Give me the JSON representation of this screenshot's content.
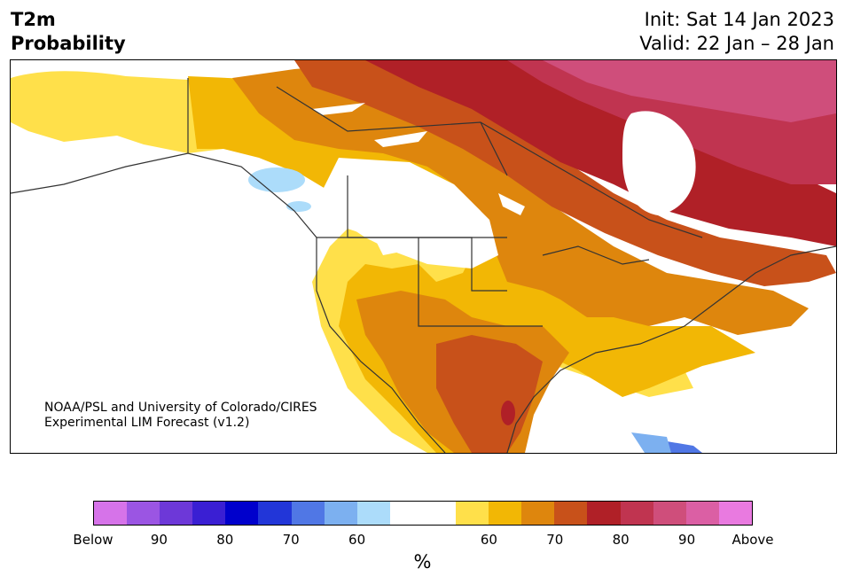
{
  "title": {
    "line1": "T2m",
    "line2": "Probability"
  },
  "subtitle": {
    "init": "Init: Sat 14 Jan 2023",
    "valid": "Valid: 22 Jan – 28 Jan"
  },
  "credit": {
    "line1": "NOAA/PSL and University of Colorado/CIRES",
    "line2": "Experimental LIM Forecast (v1.2)"
  },
  "colorbar": {
    "colors": [
      "#d673e9",
      "#9b55e3",
      "#6d38d8",
      "#3a1fd3",
      "#0000cc",
      "#2236d8",
      "#5077e5",
      "#7cb0f0",
      "#acdcfa",
      "#ffffff",
      "#ffffff",
      "#ffe04a",
      "#f2b705",
      "#de860d",
      "#c8511a",
      "#b02027",
      "#c03450",
      "#cf4e7b",
      "#db5fa4",
      "#e97ae0"
    ],
    "tick_labels": [
      "Below",
      "90",
      "80",
      "70",
      "60",
      "60",
      "70",
      "80",
      "90",
      "Above"
    ],
    "unit_label": "%"
  },
  "map": {
    "type": "probability-map",
    "region": "North America",
    "variable": "2-m temperature",
    "dominant_category": "Above",
    "legend_colors": {
      "below_60": "#acdcfa",
      "above_60": "#ffe04a",
      "above_70": "#de860d",
      "above_80": "#b02027",
      "above_90": "#cf4e7b"
    }
  }
}
